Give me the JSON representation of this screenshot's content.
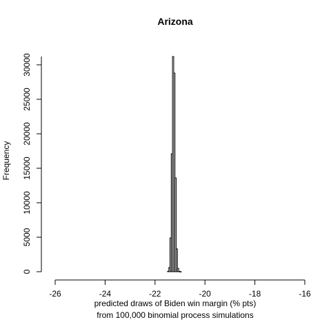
{
  "chart_data": {
    "type": "histogram",
    "title": "Arizona",
    "xlabel_line1": "predicted draws of Biden win margin (% pts)",
    "xlabel_line2": "from 100,000 binomial process simulations",
    "ylabel": "Frequency",
    "xlim": [
      -26,
      -16
    ],
    "ylim": [
      0,
      31200
    ],
    "x_ticks": [
      -26,
      -24,
      -22,
      -20,
      -18,
      -16
    ],
    "x_tick_labels": [
      "-26",
      "-24",
      "-22",
      "-20",
      "-18",
      "-16"
    ],
    "y_ticks": [
      0,
      5000,
      10000,
      15000,
      20000,
      25000,
      30000
    ],
    "y_tick_labels": [
      "0",
      "5000",
      "10000",
      "15000",
      "20000",
      "25000",
      "30000"
    ],
    "bin_width": 0.05,
    "bins_start": [
      -21.5,
      -21.45,
      -21.4,
      -21.35,
      -21.3,
      -21.25,
      -21.2,
      -21.15,
      -21.1,
      -21.05,
      -21.0
    ],
    "values": [
      60,
      600,
      4900,
      17100,
      31200,
      28800,
      13600,
      3300,
      480,
      50,
      5
    ],
    "colors": {
      "stroke": "#000000",
      "fill": "#ffffff",
      "background": "#ffffff"
    }
  }
}
